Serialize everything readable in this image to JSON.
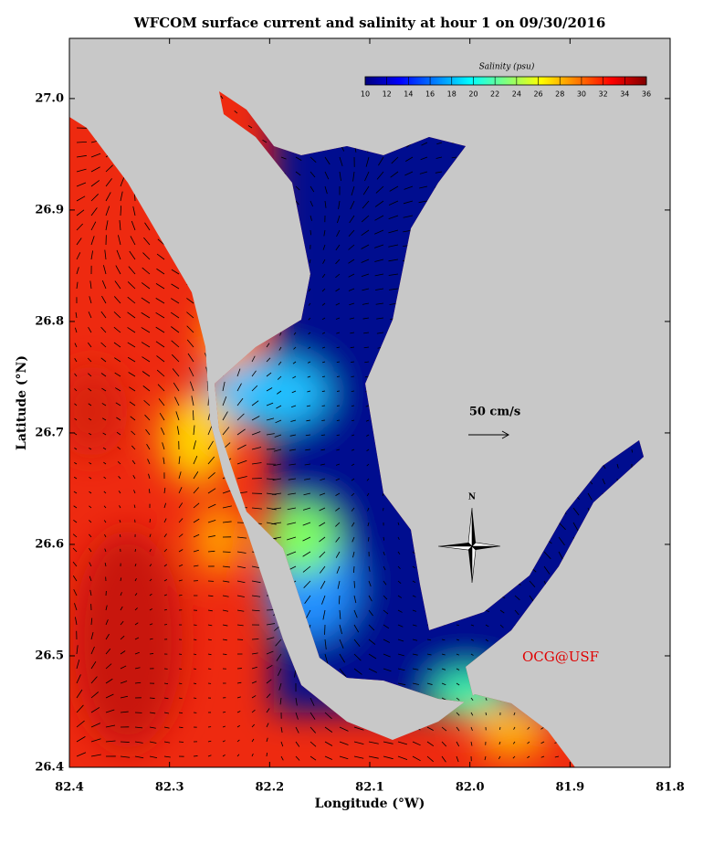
{
  "title": "WFCOM surface current and salinity at hour 1 on 09/30/2016",
  "x_axis": {
    "label": "Longitude (°W)",
    "lim": [
      82.4,
      81.8
    ],
    "ticks": [
      82.4,
      82.3,
      82.2,
      82.1,
      {
        "value": 82,
        "label": "82.0"
      },
      81.9,
      81.8
    ]
  },
  "y_axis": {
    "label": "Latitude (°N)",
    "lim": [
      26.4,
      27.054
    ],
    "ticks": [
      26.4,
      26.5,
      26.6,
      26.7,
      26.8,
      26.9,
      {
        "value": 27,
        "label": "27.0"
      }
    ]
  },
  "colorbar": {
    "label": "Salinity (psu)",
    "lim": [
      10,
      36
    ],
    "ticks": [
      10,
      12,
      14,
      16,
      18,
      20,
      22,
      24,
      26,
      28,
      30,
      32,
      34,
      36
    ],
    "colors": [
      "#00007f",
      "#0000ff",
      "#007fff",
      "#00ffff",
      "#7fff7f",
      "#ffff00",
      "#ff7f00",
      "#ff0000",
      "#7f0000"
    ]
  },
  "scale_arrow_label": "50 cm/s",
  "north_label": "N",
  "credit": "OCG@USF"
}
